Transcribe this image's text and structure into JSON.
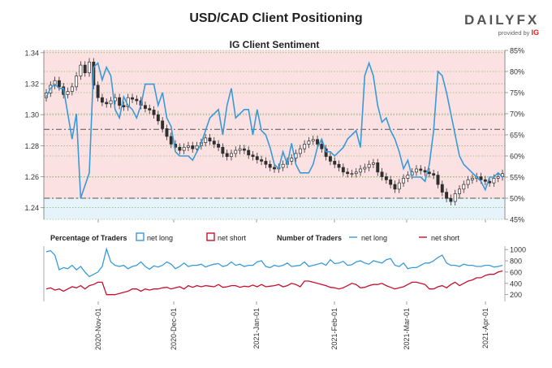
{
  "header": {
    "title": "USD/CAD Client Positioning",
    "logo_text_a": "DAILY",
    "logo_text_b": "FX",
    "provided_by": "provided by",
    "provider": "IG"
  },
  "colors": {
    "long_zone": "#e6f3fb",
    "short_zone": "#fbe1e1",
    "net_long": "#3a9ad9",
    "net_short": "#c8102e",
    "candle": "#2f2f2f",
    "grid": "#6aa84f"
  },
  "chart_data": [
    {
      "type": "candlestick+line",
      "title": "IG Client Sentiment",
      "left_axis": {
        "ticks": [
          1.24,
          1.26,
          1.28,
          1.3,
          1.32,
          1.34
        ],
        "range": [
          1.2325,
          1.3415
        ]
      },
      "right_axis": {
        "ticks": [
          "45%",
          "50%",
          "55%",
          "60%",
          "65%",
          "70%",
          "75%",
          "80%",
          "85%"
        ],
        "range": [
          45,
          85
        ]
      },
      "reference_lines": [
        50,
        66.3
      ],
      "x_dates": [
        "2020-Nov-01",
        "2020-Dec-01",
        "2021-Jan-01",
        "2021-Feb-01",
        "2021-Mar-01",
        "2021-Apr-01"
      ],
      "price_close": [
        1.314,
        1.319,
        1.322,
        1.318,
        1.313,
        1.315,
        1.318,
        1.325,
        1.332,
        1.327,
        1.334,
        1.319,
        1.311,
        1.308,
        1.307,
        1.309,
        1.311,
        1.306,
        1.305,
        1.311,
        1.31,
        1.309,
        1.306,
        1.304,
        1.303,
        1.3,
        1.296,
        1.291,
        1.286,
        1.281,
        1.279,
        1.277,
        1.279,
        1.28,
        1.278,
        1.28,
        1.282,
        1.285,
        1.283,
        1.281,
        1.279,
        1.275,
        1.273,
        1.275,
        1.277,
        1.278,
        1.277,
        1.274,
        1.273,
        1.271,
        1.27,
        1.268,
        1.266,
        1.265,
        1.266,
        1.268,
        1.27,
        1.272,
        1.275,
        1.278,
        1.281,
        1.283,
        1.284,
        1.281,
        1.278,
        1.273,
        1.27,
        1.268,
        1.266,
        1.263,
        1.262,
        1.262,
        1.263,
        1.265,
        1.266,
        1.268,
        1.269,
        1.263,
        1.26,
        1.258,
        1.255,
        1.252,
        1.256,
        1.259,
        1.261,
        1.263,
        1.265,
        1.264,
        1.263,
        1.262,
        1.261,
        1.255,
        1.25,
        1.246,
        1.244,
        1.249,
        1.252,
        1.255,
        1.258,
        1.259,
        1.26,
        1.258,
        1.257,
        1.256,
        1.259,
        1.26,
        1.262
      ],
      "sentiment_net_long_pct": [
        74,
        76,
        77,
        76,
        76,
        70,
        64,
        70,
        50,
        53,
        56,
        81,
        82,
        78,
        81,
        79,
        71,
        69,
        74,
        72,
        71,
        69,
        72,
        77,
        77,
        77,
        72,
        75,
        69,
        67,
        61,
        60,
        60,
        60,
        59,
        61,
        63,
        66,
        69,
        70,
        71,
        65,
        72,
        76,
        69,
        70,
        71,
        71,
        65,
        71,
        66,
        65,
        62,
        58,
        57,
        61,
        58,
        63,
        58,
        56,
        56,
        56,
        58,
        62,
        64,
        61,
        61,
        60,
        61,
        62,
        64,
        65,
        66,
        62,
        79,
        82,
        79,
        72,
        68,
        69,
        66,
        64,
        61,
        57,
        59,
        55,
        55,
        55,
        54,
        58,
        66,
        80,
        79,
        75,
        70,
        65,
        60,
        58,
        57,
        56,
        55,
        54,
        52,
        55,
        55,
        56,
        55
      ]
    },
    {
      "type": "line",
      "legend": [
        "Percentage of Traders",
        "net long",
        "net short",
        "Number of Traders",
        "net long",
        "net short"
      ],
      "right_axis": {
        "ticks": [
          200,
          400,
          600,
          800,
          1000
        ],
        "range": [
          80,
          1060
        ]
      },
      "net_long": [
        960,
        980,
        900,
        640,
        680,
        660,
        720,
        640,
        700,
        600,
        520,
        560,
        600,
        700,
        1010,
        780,
        720,
        700,
        720,
        660,
        700,
        720,
        780,
        700,
        650,
        710,
        690,
        720,
        780,
        740,
        660,
        700,
        760,
        700,
        720,
        720,
        740,
        690,
        720,
        740,
        750,
        700,
        720,
        780,
        720,
        740,
        700,
        720,
        720,
        780,
        800,
        700,
        680,
        720,
        700,
        720,
        760,
        700,
        710,
        720,
        780,
        700,
        720,
        740,
        760,
        720,
        820,
        750,
        760,
        790,
        720,
        730,
        780,
        800,
        760,
        740,
        800,
        780,
        760,
        820,
        840,
        720,
        700,
        760,
        660,
        680,
        680,
        720,
        760,
        760,
        800,
        860,
        900,
        760,
        720,
        720,
        700,
        740,
        720,
        720,
        700,
        700,
        720,
        720,
        690,
        700,
        720
      ],
      "net_short": [
        300,
        320,
        280,
        300,
        260,
        300,
        340,
        320,
        360,
        300,
        360,
        380,
        420,
        420,
        200,
        200,
        200,
        220,
        240,
        260,
        300,
        300,
        260,
        300,
        280,
        300,
        300,
        320,
        330,
        300,
        320,
        340,
        300,
        360,
        330,
        360,
        340,
        360,
        350,
        340,
        380,
        330,
        340,
        360,
        360,
        330,
        350,
        340,
        370,
        340,
        380,
        340,
        350,
        360,
        380,
        340,
        360,
        400,
        380,
        340,
        440,
        440,
        420,
        400,
        380,
        360,
        330,
        320,
        300,
        320,
        360,
        400,
        380,
        320,
        330,
        360,
        380,
        380,
        400,
        360,
        330,
        300,
        320,
        340,
        380,
        420,
        420,
        400,
        380,
        300,
        300,
        340,
        360,
        320,
        380,
        420,
        360,
        400,
        440,
        460,
        500,
        500,
        540,
        560,
        560,
        600,
        620
      ]
    }
  ]
}
